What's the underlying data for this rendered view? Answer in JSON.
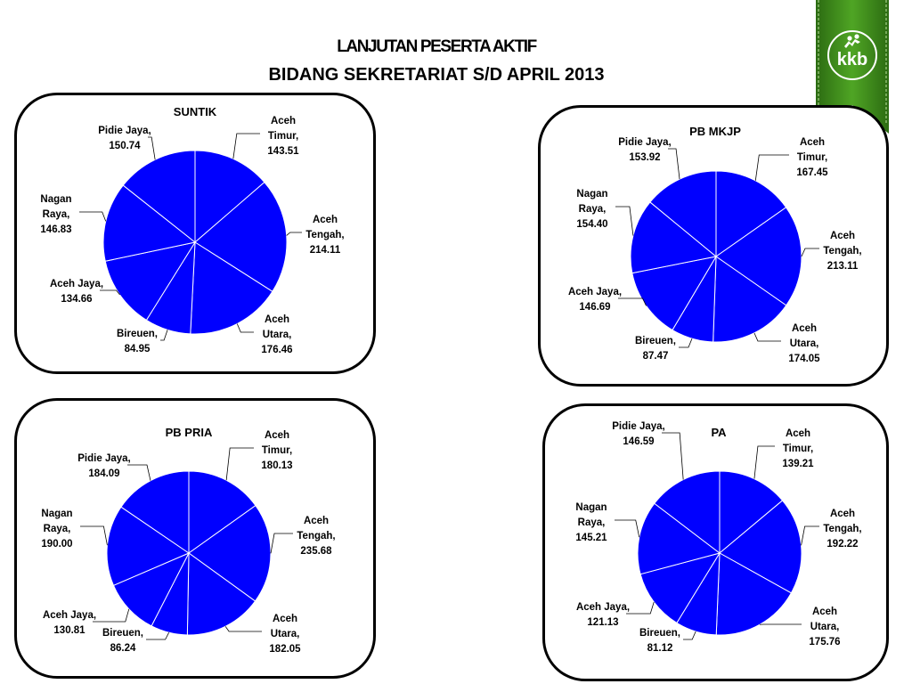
{
  "header": {
    "title_line1": "LANJUTAN PESERTA   AKTIF",
    "title_line2": "BIDANG SEKRETARIAT S/D  APRIL 2013"
  },
  "logo": {
    "text": "kkb",
    "ribbon_color": "#3f8f1c",
    "icon": "people-figures-icon"
  },
  "colors": {
    "slice": "#0000ff",
    "slice_border": "#ffffff",
    "panel_border": "#000000"
  },
  "chart_data": [
    {
      "type": "pie",
      "title": "SUNTIK",
      "categories": [
        "Aceh Timur",
        "Aceh Tengah",
        "Aceh Utara",
        "Bireuen",
        "Aceh Jaya",
        "Nagan Raya",
        "Pidie Jaya"
      ],
      "values": [
        143.51,
        214.11,
        176.46,
        84.95,
        134.66,
        146.83,
        150.74
      ],
      "labels": [
        [
          "Aceh",
          "Timur,",
          "143.51"
        ],
        [
          "Aceh",
          "Tengah,",
          "214.11"
        ],
        [
          "Aceh",
          "Utara,",
          "176.46"
        ],
        [
          "Bireuen,",
          "84.95"
        ],
        [
          "Aceh Jaya,",
          "134.66"
        ],
        [
          "Nagan",
          "Raya,",
          "146.83"
        ],
        [
          "Pidie Jaya,",
          "150.74"
        ]
      ]
    },
    {
      "type": "pie",
      "title": "PB  MKJP",
      "categories": [
        "Aceh Timur",
        "Aceh Tengah",
        "Aceh Utara",
        "Bireuen",
        "Aceh Jaya",
        "Nagan Raya",
        "Pidie Jaya"
      ],
      "values": [
        167.45,
        213.11,
        174.05,
        87.47,
        146.69,
        154.4,
        153.92
      ],
      "labels": [
        [
          "Aceh",
          "Timur,",
          "167.45"
        ],
        [
          "Aceh",
          "Tengah,",
          "213.11"
        ],
        [
          "Aceh",
          "Utara,",
          "174.05"
        ],
        [
          "Bireuen,",
          "87.47"
        ],
        [
          "Aceh Jaya,",
          "146.69"
        ],
        [
          "Nagan",
          "Raya,",
          "154.40"
        ],
        [
          "Pidie Jaya,",
          "153.92"
        ]
      ]
    },
    {
      "type": "pie",
      "title": "PB PRIA",
      "categories": [
        "Aceh Timur",
        "Aceh Tengah",
        "Aceh Utara",
        "Bireuen",
        "Aceh Jaya",
        "Nagan Raya",
        "Pidie Jaya"
      ],
      "values": [
        180.13,
        235.68,
        182.05,
        86.24,
        130.81,
        190.0,
        184.09
      ],
      "labels": [
        [
          "Aceh",
          "Timur,",
          "180.13"
        ],
        [
          "Aceh",
          "Tengah,",
          "235.68"
        ],
        [
          "Aceh",
          "Utara,",
          "182.05"
        ],
        [
          "Bireuen,",
          "86.24"
        ],
        [
          "Aceh Jaya,",
          "130.81"
        ],
        [
          "Nagan",
          "Raya,",
          "190.00"
        ],
        [
          "Pidie Jaya,",
          "184.09"
        ]
      ]
    },
    {
      "type": "pie",
      "title": "PA",
      "categories": [
        "Aceh Timur",
        "Aceh Tengah",
        "Aceh Utara",
        "Bireuen",
        "Aceh Jaya",
        "Nagan Raya",
        "Pidie Jaya"
      ],
      "values": [
        139.21,
        192.22,
        175.76,
        81.12,
        121.13,
        145.21,
        146.59
      ],
      "labels": [
        [
          "Aceh",
          "Timur,",
          "139.21"
        ],
        [
          "Aceh",
          "Tengah,",
          "192.22"
        ],
        [
          "Aceh",
          "Utara,",
          "175.76"
        ],
        [
          "Bireuen,",
          "81.12"
        ],
        [
          "Aceh Jaya,",
          "121.13"
        ],
        [
          "Nagan",
          "Raya,",
          "145.21"
        ],
        [
          "Pidie Jaya,",
          "146.59"
        ]
      ]
    }
  ]
}
